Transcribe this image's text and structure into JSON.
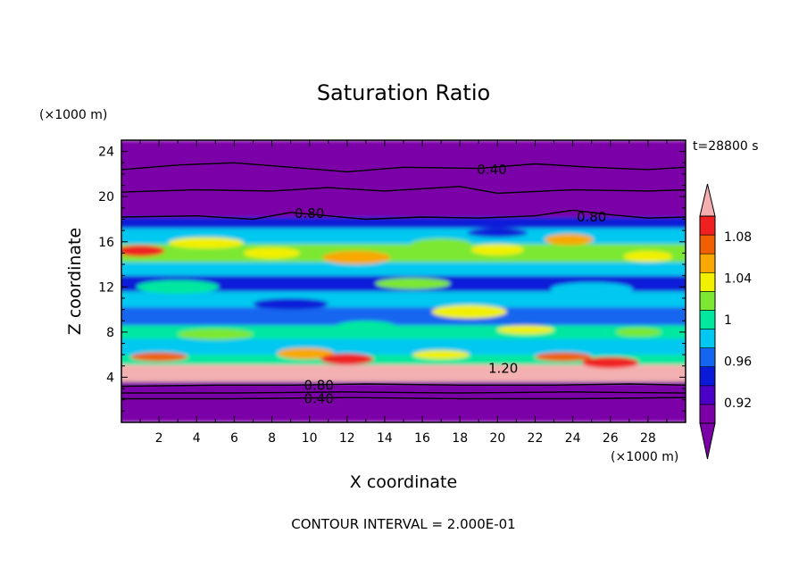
{
  "chart_data": {
    "type": "heatmap",
    "title": "Saturation Ratio",
    "xlabel": "X coordinate",
    "ylabel": "Z coordinate",
    "x_unit": "(×1000 m)",
    "y_unit": "(×1000 m)",
    "time_label": "t=28800 s",
    "footer": "CONTOUR INTERVAL = 2.000E-01",
    "xlim": [
      0,
      30
    ],
    "ylim": [
      0,
      25
    ],
    "x_ticks": [
      2,
      4,
      6,
      8,
      10,
      12,
      14,
      16,
      18,
      20,
      22,
      24,
      26,
      28
    ],
    "y_ticks": [
      4,
      8,
      12,
      16,
      20,
      24
    ],
    "colorbar": {
      "levels": [
        0.9,
        0.92,
        0.94,
        0.96,
        0.98,
        1.0,
        1.02,
        1.04,
        1.06,
        1.08,
        1.1
      ],
      "tick_labels": [
        "0.92",
        "0.96",
        "1",
        "1.04",
        "1.08"
      ],
      "tick_values": [
        0.92,
        0.96,
        1.0,
        1.04,
        1.08
      ],
      "colors": [
        "#7b00a8",
        "#4b00c8",
        "#0a1ad8",
        "#1466f0",
        "#00c8f0",
        "#00e8a0",
        "#7ce832",
        "#f0f000",
        "#f8a800",
        "#f06000",
        "#f02020"
      ],
      "under_color": "#7b00a8",
      "over_color": "#f4b0b0"
    },
    "contour_labels": [
      {
        "text": "0.40",
        "x": 19.7,
        "z": 22.4
      },
      {
        "text": "0.80",
        "x": 10.0,
        "z": 18.5
      },
      {
        "text": "0.80",
        "x": 25.0,
        "z": 18.2
      },
      {
        "text": "1.20",
        "x": 20.3,
        "z": 4.8
      },
      {
        "text": "0.80",
        "x": 10.5,
        "z": 3.3
      },
      {
        "text": "0.40",
        "x": 10.5,
        "z": 2.1
      }
    ],
    "contours": [
      {
        "value": 0.4,
        "points": [
          [
            0,
            22.4
          ],
          [
            3,
            22.8
          ],
          [
            6,
            23.0
          ],
          [
            9,
            22.6
          ],
          [
            12,
            22.2
          ],
          [
            15,
            22.6
          ],
          [
            19,
            22.5
          ],
          [
            22,
            22.9
          ],
          [
            25,
            22.6
          ],
          [
            28,
            22.4
          ],
          [
            30,
            22.6
          ]
        ]
      },
      {
        "value": 0.6,
        "points": [
          [
            0,
            20.4
          ],
          [
            4,
            20.6
          ],
          [
            8,
            20.5
          ],
          [
            11,
            20.8
          ],
          [
            14,
            20.5
          ],
          [
            18,
            20.9
          ],
          [
            20,
            20.3
          ],
          [
            24,
            20.6
          ],
          [
            28,
            20.5
          ],
          [
            30,
            20.6
          ]
        ]
      },
      {
        "value": 0.8,
        "points": [
          [
            0,
            18.2
          ],
          [
            4,
            18.3
          ],
          [
            7,
            18.0
          ],
          [
            9,
            18.6
          ],
          [
            11,
            18.3
          ],
          [
            13,
            18.0
          ],
          [
            16,
            18.2
          ],
          [
            19,
            18.1
          ],
          [
            22,
            18.3
          ],
          [
            24,
            18.8
          ],
          [
            26,
            18.4
          ],
          [
            28,
            18.1
          ],
          [
            30,
            18.2
          ]
        ]
      },
      {
        "value": 0.8,
        "points": [
          [
            0,
            3.2
          ],
          [
            5,
            3.3
          ],
          [
            9,
            3.3
          ],
          [
            13,
            3.4
          ],
          [
            18,
            3.3
          ],
          [
            23,
            3.3
          ],
          [
            27,
            3.4
          ],
          [
            30,
            3.3
          ]
        ]
      },
      {
        "value": 0.6,
        "points": [
          [
            0,
            2.6
          ],
          [
            6,
            2.6
          ],
          [
            12,
            2.7
          ],
          [
            18,
            2.6
          ],
          [
            24,
            2.7
          ],
          [
            30,
            2.6
          ]
        ]
      },
      {
        "value": 0.4,
        "points": [
          [
            0,
            2.1
          ],
          [
            6,
            2.1
          ],
          [
            12,
            2.2
          ],
          [
            18,
            2.1
          ],
          [
            24,
            2.1
          ],
          [
            30,
            2.2
          ]
        ]
      }
    ],
    "layers": [
      {
        "z": [
          0,
          3.6
        ],
        "value": 0.85
      },
      {
        "z": [
          3.6,
          4.2
        ],
        "value": 1.12
      },
      {
        "z": [
          4.2,
          5.1
        ],
        "value": 1.11
      },
      {
        "z": [
          5.1,
          6.0
        ],
        "value": 0.99
      },
      {
        "z": [
          6.0,
          7.4
        ],
        "value": 0.96
      },
      {
        "z": [
          7.4,
          8.6
        ],
        "value": 0.98
      },
      {
        "z": [
          8.6,
          10.2
        ],
        "value": 0.94
      },
      {
        "z": [
          10.2,
          11.6
        ],
        "value": 0.96
      },
      {
        "z": [
          11.6,
          13.0
        ],
        "value": 0.93
      },
      {
        "z": [
          13.0,
          14.2
        ],
        "value": 0.97
      },
      {
        "z": [
          14.2,
          15.8
        ],
        "value": 1.0
      },
      {
        "z": [
          15.8,
          17.2
        ],
        "value": 0.96
      },
      {
        "z": [
          17.2,
          18.2
        ],
        "value": 0.93
      },
      {
        "z": [
          18.2,
          25.0
        ],
        "value": 0.7
      }
    ],
    "blobs": [
      {
        "x": 1.0,
        "z": 15.2,
        "rx": 1.3,
        "rz": 0.5,
        "value": 1.09
      },
      {
        "x": 4.5,
        "z": 15.9,
        "rx": 2.0,
        "rz": 0.5,
        "value": 1.02
      },
      {
        "x": 8.0,
        "z": 15.0,
        "rx": 1.5,
        "rz": 0.5,
        "value": 1.03
      },
      {
        "x": 12.5,
        "z": 14.6,
        "rx": 1.8,
        "rz": 0.6,
        "value": 1.05
      },
      {
        "x": 17.0,
        "z": 15.8,
        "rx": 1.6,
        "rz": 0.5,
        "value": 1.01
      },
      {
        "x": 20.0,
        "z": 15.3,
        "rx": 1.4,
        "rz": 0.5,
        "value": 1.02
      },
      {
        "x": 23.8,
        "z": 16.2,
        "rx": 1.3,
        "rz": 0.5,
        "value": 1.04
      },
      {
        "x": 28.0,
        "z": 14.7,
        "rx": 1.3,
        "rz": 0.5,
        "value": 1.02
      },
      {
        "x": 3.0,
        "z": 12.0,
        "rx": 2.2,
        "rz": 0.6,
        "value": 0.98
      },
      {
        "x": 15.5,
        "z": 12.3,
        "rx": 2.0,
        "rz": 0.5,
        "value": 1.0
      },
      {
        "x": 25.0,
        "z": 11.8,
        "rx": 2.2,
        "rz": 0.6,
        "value": 0.97
      },
      {
        "x": 9.0,
        "z": 10.5,
        "rx": 2.0,
        "rz": 0.5,
        "value": 0.92
      },
      {
        "x": 18.5,
        "z": 9.8,
        "rx": 2.0,
        "rz": 0.6,
        "value": 1.02
      },
      {
        "x": 13.0,
        "z": 8.5,
        "rx": 1.6,
        "rz": 0.5,
        "value": 0.99
      },
      {
        "x": 5.0,
        "z": 7.8,
        "rx": 2.0,
        "rz": 0.5,
        "value": 1.01
      },
      {
        "x": 21.5,
        "z": 8.2,
        "rx": 1.5,
        "rz": 0.4,
        "value": 1.03
      },
      {
        "x": 27.5,
        "z": 8.0,
        "rx": 1.2,
        "rz": 0.4,
        "value": 1.01
      },
      {
        "x": 2.0,
        "z": 5.8,
        "rx": 1.5,
        "rz": 0.4,
        "value": 1.06
      },
      {
        "x": 9.8,
        "z": 6.1,
        "rx": 1.5,
        "rz": 0.5,
        "value": 1.05
      },
      {
        "x": 12.0,
        "z": 5.6,
        "rx": 1.4,
        "rz": 0.5,
        "value": 1.08
      },
      {
        "x": 17.0,
        "z": 6.0,
        "rx": 1.5,
        "rz": 0.4,
        "value": 1.03
      },
      {
        "x": 23.5,
        "z": 5.8,
        "rx": 1.5,
        "rz": 0.4,
        "value": 1.06
      },
      {
        "x": 26.0,
        "z": 5.3,
        "rx": 1.5,
        "rz": 0.5,
        "value": 1.09
      },
      {
        "x": 20.0,
        "z": 16.8,
        "rx": 1.6,
        "rz": 0.4,
        "value": 0.92
      }
    ]
  }
}
